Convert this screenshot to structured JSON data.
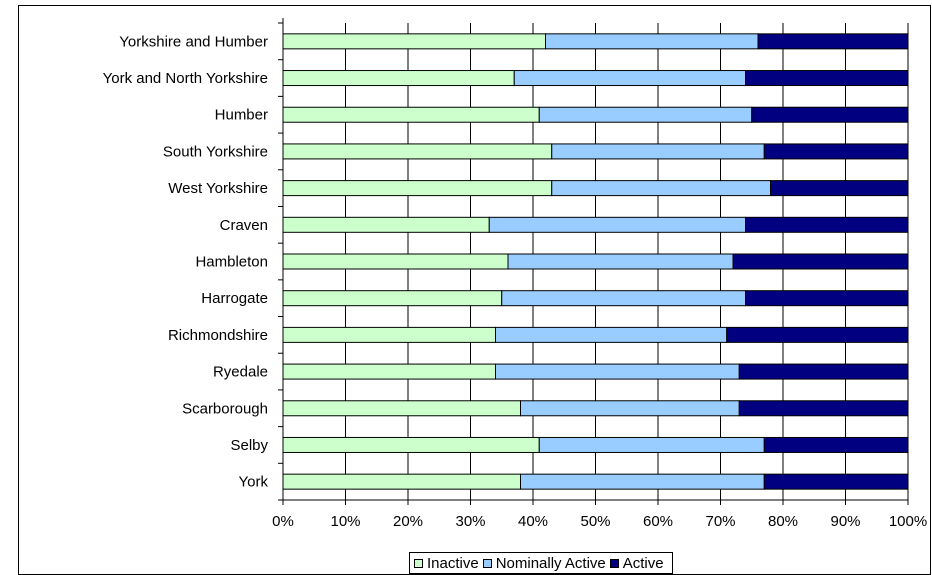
{
  "chart_data": {
    "type": "bar",
    "orientation": "horizontal",
    "stacked": "percent",
    "title": "",
    "xlabel": "",
    "ylabel": "",
    "xlim": [
      0,
      100
    ],
    "x_ticks": [
      "0%",
      "10%",
      "20%",
      "30%",
      "40%",
      "50%",
      "60%",
      "70%",
      "80%",
      "90%",
      "100%"
    ],
    "grid": true,
    "legend_position": "bottom",
    "categories": [
      "Yorkshire and Humber",
      "York and North Yorkshire",
      "Humber",
      "South Yorkshire",
      "West Yorkshire",
      "Craven",
      "Hambleton",
      "Harrogate",
      "Richmondshire",
      "Ryedale",
      "Scarborough",
      "Selby",
      "York"
    ],
    "series": [
      {
        "name": "Inactive",
        "color": "#ccffcc",
        "values": [
          42,
          37,
          41,
          43,
          43,
          33,
          36,
          35,
          34,
          34,
          38,
          41,
          38
        ]
      },
      {
        "name": "Nominally Active",
        "color": "#99ccff",
        "values": [
          34,
          37,
          34,
          34,
          35,
          41,
          36,
          39,
          37,
          39,
          35,
          36,
          39
        ]
      },
      {
        "name": "Active",
        "color": "#000080",
        "values": [
          24,
          26,
          25,
          23,
          22,
          26,
          28,
          26,
          29,
          27,
          27,
          23,
          23
        ]
      }
    ]
  }
}
